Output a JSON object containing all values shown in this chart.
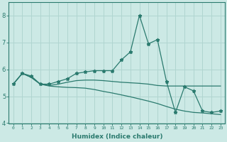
{
  "xlabel": "Humidex (Indice chaleur)",
  "ylabel": "",
  "xlim": [
    -0.5,
    23.5
  ],
  "ylim": [
    4,
    8.5
  ],
  "yticks": [
    4,
    5,
    6,
    7,
    8
  ],
  "xticks": [
    0,
    1,
    2,
    3,
    4,
    5,
    6,
    7,
    8,
    9,
    10,
    11,
    12,
    13,
    14,
    15,
    16,
    17,
    18,
    19,
    20,
    21,
    22,
    23
  ],
  "bg_color": "#cce9e5",
  "grid_color": "#b0d5d0",
  "line_color": "#2a7a6e",
  "series": [
    {
      "x": [
        0,
        1,
        2,
        3,
        4,
        5,
        6,
        7,
        8,
        9,
        10,
        11,
        12,
        13,
        14,
        15,
        16,
        17,
        18,
        19,
        20,
        21,
        22,
        23
      ],
      "y": [
        5.45,
        5.85,
        5.75,
        5.45,
        5.45,
        5.55,
        5.65,
        5.85,
        5.9,
        5.95,
        5.95,
        5.95,
        6.35,
        6.65,
        8.0,
        6.95,
        7.1,
        5.55,
        4.4,
        5.35,
        5.2,
        4.45,
        4.4,
        4.45
      ],
      "has_markers": true,
      "linestyle": "-"
    },
    {
      "x": [
        0,
        1,
        2,
        3,
        4,
        5,
        6,
        7,
        8,
        9,
        10,
        11,
        12,
        13,
        14,
        15,
        16,
        17,
        18,
        19,
        20,
        21,
        22,
        23
      ],
      "y": [
        5.45,
        5.85,
        5.7,
        5.45,
        5.4,
        5.45,
        5.52,
        5.58,
        5.6,
        5.6,
        5.58,
        5.55,
        5.52,
        5.5,
        5.48,
        5.45,
        5.4,
        5.38,
        5.38,
        5.38,
        5.38,
        5.38,
        5.38,
        5.38
      ],
      "has_markers": false,
      "linestyle": "-"
    },
    {
      "x": [
        0,
        1,
        2,
        3,
        4,
        5,
        6,
        7,
        8,
        9,
        10,
        11,
        12,
        13,
        14,
        15,
        16,
        17,
        18,
        19,
        20,
        21,
        22,
        23
      ],
      "y": [
        5.45,
        5.85,
        5.7,
        5.45,
        5.38,
        5.35,
        5.33,
        5.32,
        5.3,
        5.25,
        5.18,
        5.12,
        5.05,
        4.98,
        4.9,
        4.82,
        4.73,
        4.62,
        4.52,
        4.45,
        4.4,
        4.38,
        4.35,
        4.32
      ],
      "has_markers": false,
      "linestyle": "-"
    }
  ]
}
